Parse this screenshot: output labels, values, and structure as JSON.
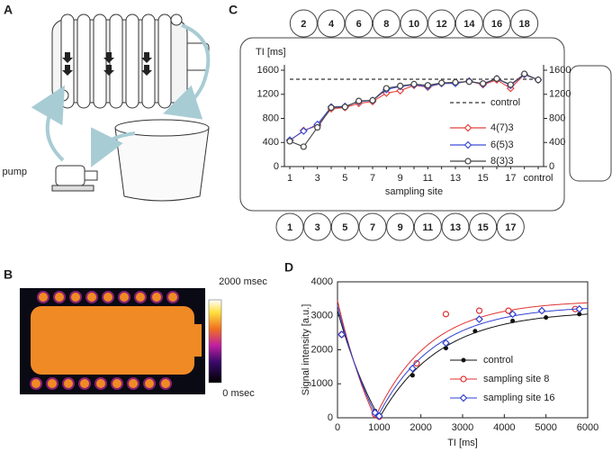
{
  "panel_labels": [
    "A",
    "B",
    "C",
    "D"
  ],
  "pump_label": "pump",
  "colorbar": {
    "max_label": "2000 msec",
    "min_label": "0 msec"
  },
  "rings": {
    "top": [
      "2",
      "4",
      "6",
      "8",
      "10",
      "12",
      "14",
      "16",
      "18"
    ],
    "bottom": [
      "1",
      "3",
      "5",
      "7",
      "9",
      "11",
      "13",
      "15",
      "17"
    ]
  },
  "chart_data": [
    {
      "type": "line",
      "y_label": "TI [ms]",
      "x_label": "sampling site",
      "categories": [
        "1",
        null,
        "3",
        null,
        "5",
        null,
        "7",
        null,
        "9",
        null,
        "11",
        null,
        "13",
        null,
        "15",
        null,
        "17",
        null,
        "control"
      ],
      "ylim": [
        0,
        1600
      ],
      "yticks": [
        0,
        400,
        800,
        1200,
        1600
      ],
      "y2lim": [
        0,
        1600
      ],
      "y2ticks": [
        0,
        400,
        800,
        1200,
        1600
      ],
      "series": [
        {
          "name": "control",
          "color": "#333333",
          "dashed": true,
          "values": [
            1450,
            1450,
            1450,
            1450,
            1450,
            1450,
            1450,
            1450,
            1450,
            1450,
            1450,
            1450,
            1450,
            1450,
            1450,
            1450,
            1450,
            1450,
            1450
          ]
        },
        {
          "name": "4(7)3",
          "color": "#e8413c",
          "marker": "diamond",
          "values": [
            430,
            600,
            680,
            960,
            980,
            1050,
            1080,
            1220,
            1260,
            1350,
            1320,
            1380,
            1390,
            1420,
            1360,
            1440,
            1300,
            1530,
            1440
          ]
        },
        {
          "name": "6(5)3",
          "color": "#3c4fd6",
          "marker": "diamond",
          "values": [
            440,
            590,
            700,
            990,
            1000,
            1080,
            1100,
            1280,
            1330,
            1360,
            1330,
            1380,
            1380,
            1420,
            1370,
            1460,
            1350,
            1530,
            1440
          ]
        },
        {
          "name": "8(3)3",
          "color": "#444444",
          "marker": "circle",
          "values": [
            420,
            330,
            650,
            980,
            990,
            1090,
            1100,
            1300,
            1340,
            1370,
            1350,
            1390,
            1400,
            1410,
            1380,
            1460,
            1360,
            1540,
            1440
          ]
        }
      ]
    },
    {
      "type": "scatter",
      "x_label": "TI [ms]",
      "y_label": "Signal intensity [a.u.]",
      "xlim": [
        0,
        6000
      ],
      "xticks": [
        0,
        1000,
        2000,
        3000,
        4000,
        5000,
        6000
      ],
      "ylim": [
        0,
        4000
      ],
      "yticks": [
        0,
        1000,
        2000,
        3000,
        4000
      ],
      "series": [
        {
          "name": "control",
          "color": "#111111",
          "marker": "dot",
          "fit_m0": 3150,
          "fit_t1": 1450,
          "x": [
            100,
            900,
            1000,
            1800,
            2600,
            3300,
            4200,
            5000,
            5800
          ],
          "values": [
            2450,
            200,
            80,
            1250,
            2050,
            2550,
            2850,
            2950,
            3050
          ]
        },
        {
          "name": "sampling site 8",
          "color": "#e03030",
          "marker": "circle",
          "fit_m0": 3450,
          "fit_t1": 1300,
          "x": [
            100,
            900,
            1000,
            1900,
            2600,
            3400,
            4100,
            5700
          ],
          "values": [
            2450,
            100,
            30,
            1600,
            3050,
            3150,
            3150,
            3200
          ]
        },
        {
          "name": "sampling site 16",
          "color": "#3040d0",
          "marker": "diamond",
          "fit_m0": 3300,
          "fit_t1": 1370,
          "x": [
            100,
            900,
            1000,
            1800,
            2600,
            3400,
            4200,
            4900,
            5800
          ],
          "values": [
            2450,
            150,
            50,
            1450,
            2200,
            2900,
            3050,
            3150,
            3200
          ]
        }
      ]
    }
  ]
}
